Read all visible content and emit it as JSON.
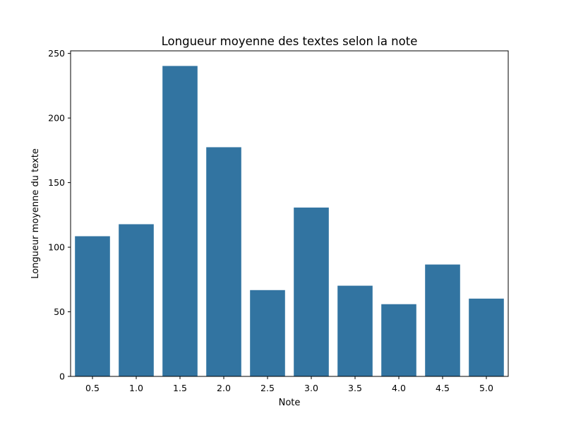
{
  "chart_data": {
    "type": "bar",
    "title": "Longueur moyenne des textes selon la note",
    "xlabel": "Note",
    "ylabel": "Longueur moyenne du texte",
    "categories": [
      "0.5",
      "1.0",
      "1.5",
      "2.0",
      "2.5",
      "3.0",
      "3.5",
      "4.0",
      "4.5",
      "5.0"
    ],
    "values": [
      108.5,
      117.8,
      240.3,
      177.4,
      66.8,
      130.7,
      70.2,
      55.9,
      86.6,
      60.2
    ],
    "ylim": [
      0,
      252
    ],
    "yticks": [
      0,
      50,
      100,
      150,
      200,
      250
    ],
    "grid": false,
    "bar_color": "#3274a1"
  }
}
